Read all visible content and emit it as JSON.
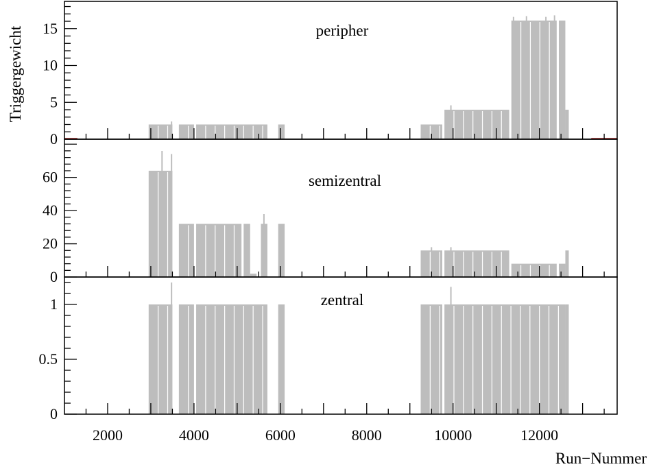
{
  "chart_data": [
    {
      "type": "bar",
      "panel_label": "peripher",
      "ylabel": "Triggergewicht",
      "xlim": [
        1000,
        13800
      ],
      "ylim": [
        0,
        18.7
      ],
      "yticks": [
        0,
        5,
        10,
        15
      ],
      "ytick_labels": [
        "0",
        "5",
        "10",
        "15"
      ],
      "segments": [
        {
          "x0": 2950,
          "x1": 3500,
          "y": 2
        },
        {
          "x0": 3650,
          "x1": 4000,
          "y": 2
        },
        {
          "x0": 4050,
          "x1": 5700,
          "y": 2
        },
        {
          "x0": 5950,
          "x1": 6100,
          "y": 2
        },
        {
          "x0": 9250,
          "x1": 9750,
          "y": 2
        },
        {
          "x0": 9800,
          "x1": 11300,
          "y": 4
        },
        {
          "x0": 11350,
          "x1": 12400,
          "y": 16.1
        },
        {
          "x0": 12450,
          "x1": 12600,
          "y": 16.1
        },
        {
          "x0": 12600,
          "x1": 12680,
          "y": 4
        }
      ],
      "spikes": [
        {
          "x": 3480,
          "y": 2.4
        },
        {
          "x": 9950,
          "y": 4.6
        },
        {
          "x": 11400,
          "y": 16.6
        },
        {
          "x": 11700,
          "y": 16.7
        },
        {
          "x": 12150,
          "y": 16.6
        },
        {
          "x": 12350,
          "y": 16.8
        }
      ]
    },
    {
      "type": "bar",
      "panel_label": "semizentral",
      "xlim": [
        1000,
        13800
      ],
      "ylim": [
        0,
        83
      ],
      "yticks": [
        0,
        20,
        40,
        60
      ],
      "ytick_labels": [
        "0",
        "20",
        "40",
        "60"
      ],
      "segments": [
        {
          "x0": 2950,
          "x1": 3500,
          "y": 64
        },
        {
          "x0": 3650,
          "x1": 4000,
          "y": 32
        },
        {
          "x0": 4050,
          "x1": 5100,
          "y": 32
        },
        {
          "x0": 5150,
          "x1": 5300,
          "y": 32
        },
        {
          "x0": 5300,
          "x1": 5450,
          "y": 2
        },
        {
          "x0": 5550,
          "x1": 5700,
          "y": 32
        },
        {
          "x0": 5950,
          "x1": 6100,
          "y": 32
        },
        {
          "x0": 9250,
          "x1": 9750,
          "y": 16
        },
        {
          "x0": 9800,
          "x1": 11300,
          "y": 16
        },
        {
          "x0": 11350,
          "x1": 12400,
          "y": 8
        },
        {
          "x0": 12450,
          "x1": 12600,
          "y": 8
        },
        {
          "x0": 12600,
          "x1": 12680,
          "y": 16
        }
      ],
      "spikes": [
        {
          "x": 3260,
          "y": 76
        },
        {
          "x": 3480,
          "y": 74
        },
        {
          "x": 5620,
          "y": 38
        },
        {
          "x": 9500,
          "y": 18
        },
        {
          "x": 9950,
          "y": 18
        }
      ]
    },
    {
      "type": "bar",
      "panel_label": "zentral",
      "xlabel": "Run−Nummer",
      "xlim": [
        1000,
        13800
      ],
      "ylim": [
        0,
        1.25
      ],
      "yticks": [
        0,
        0.5,
        1
      ],
      "ytick_labels": [
        "0",
        "0.5",
        "1"
      ],
      "xticks": [
        2000,
        4000,
        6000,
        8000,
        10000,
        12000
      ],
      "xtick_labels": [
        "2000",
        "4000",
        "6000",
        "8000",
        "10000",
        "12000"
      ],
      "segments": [
        {
          "x0": 2950,
          "x1": 3500,
          "y": 1
        },
        {
          "x0": 3650,
          "x1": 4000,
          "y": 1
        },
        {
          "x0": 4050,
          "x1": 5700,
          "y": 1
        },
        {
          "x0": 5950,
          "x1": 6100,
          "y": 1
        },
        {
          "x0": 9250,
          "x1": 9750,
          "y": 1
        },
        {
          "x0": 9800,
          "x1": 12600,
          "y": 1
        },
        {
          "x0": 12600,
          "x1": 12680,
          "y": 1
        }
      ],
      "spikes": [
        {
          "x": 3480,
          "y": 1.2
        },
        {
          "x": 9950,
          "y": 1.16
        }
      ]
    }
  ],
  "colors": {
    "bars": "#bdbdbd",
    "axes": "#000000",
    "baseline_tint": "#b22222"
  }
}
